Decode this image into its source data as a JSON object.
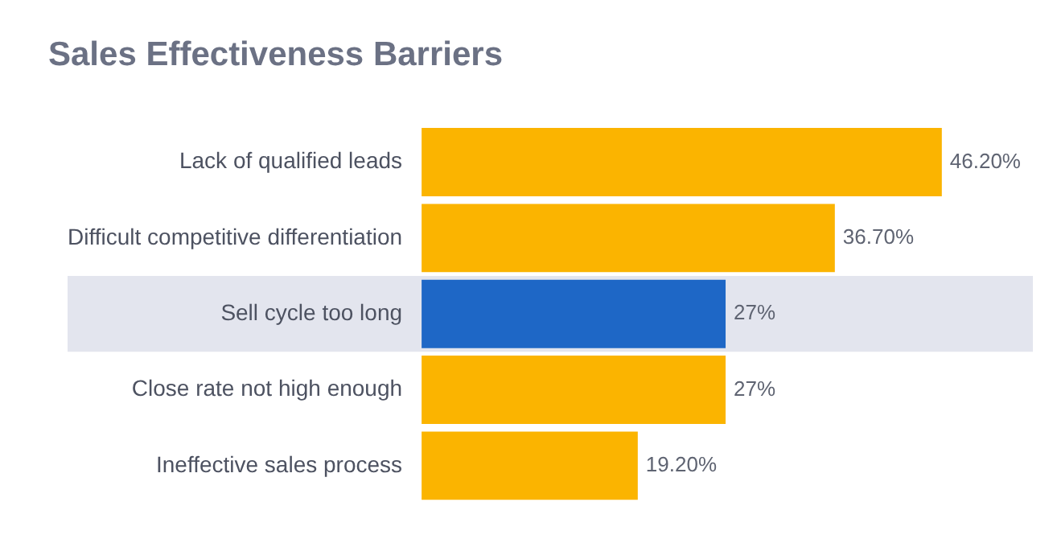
{
  "chart_data": {
    "type": "bar",
    "orientation": "horizontal",
    "title": "Sales Effectiveness Barriers",
    "categories": [
      "Lack of qualified leads",
      "Difficult competitive differentiation",
      "Sell cycle too long",
      "Close rate not high enough",
      "Ineffective sales process"
    ],
    "values": [
      46.2,
      36.7,
      27,
      27,
      19.2
    ],
    "colors": [
      "#fbb400",
      "#fbb400",
      "#1e67c6",
      "#fbb400",
      "#fbb400"
    ],
    "value_labels": [
      "46.20%",
      "36.70%",
      "27%",
      "27%",
      "19.20%"
    ],
    "bands": [
      {
        "axis": "y",
        "from": "Sell cycle too long",
        "to": "Sell cycle too long",
        "color": "#e3e5ee"
      }
    ],
    "tick_labels": "y",
    "grid": false,
    "legend": false
  }
}
